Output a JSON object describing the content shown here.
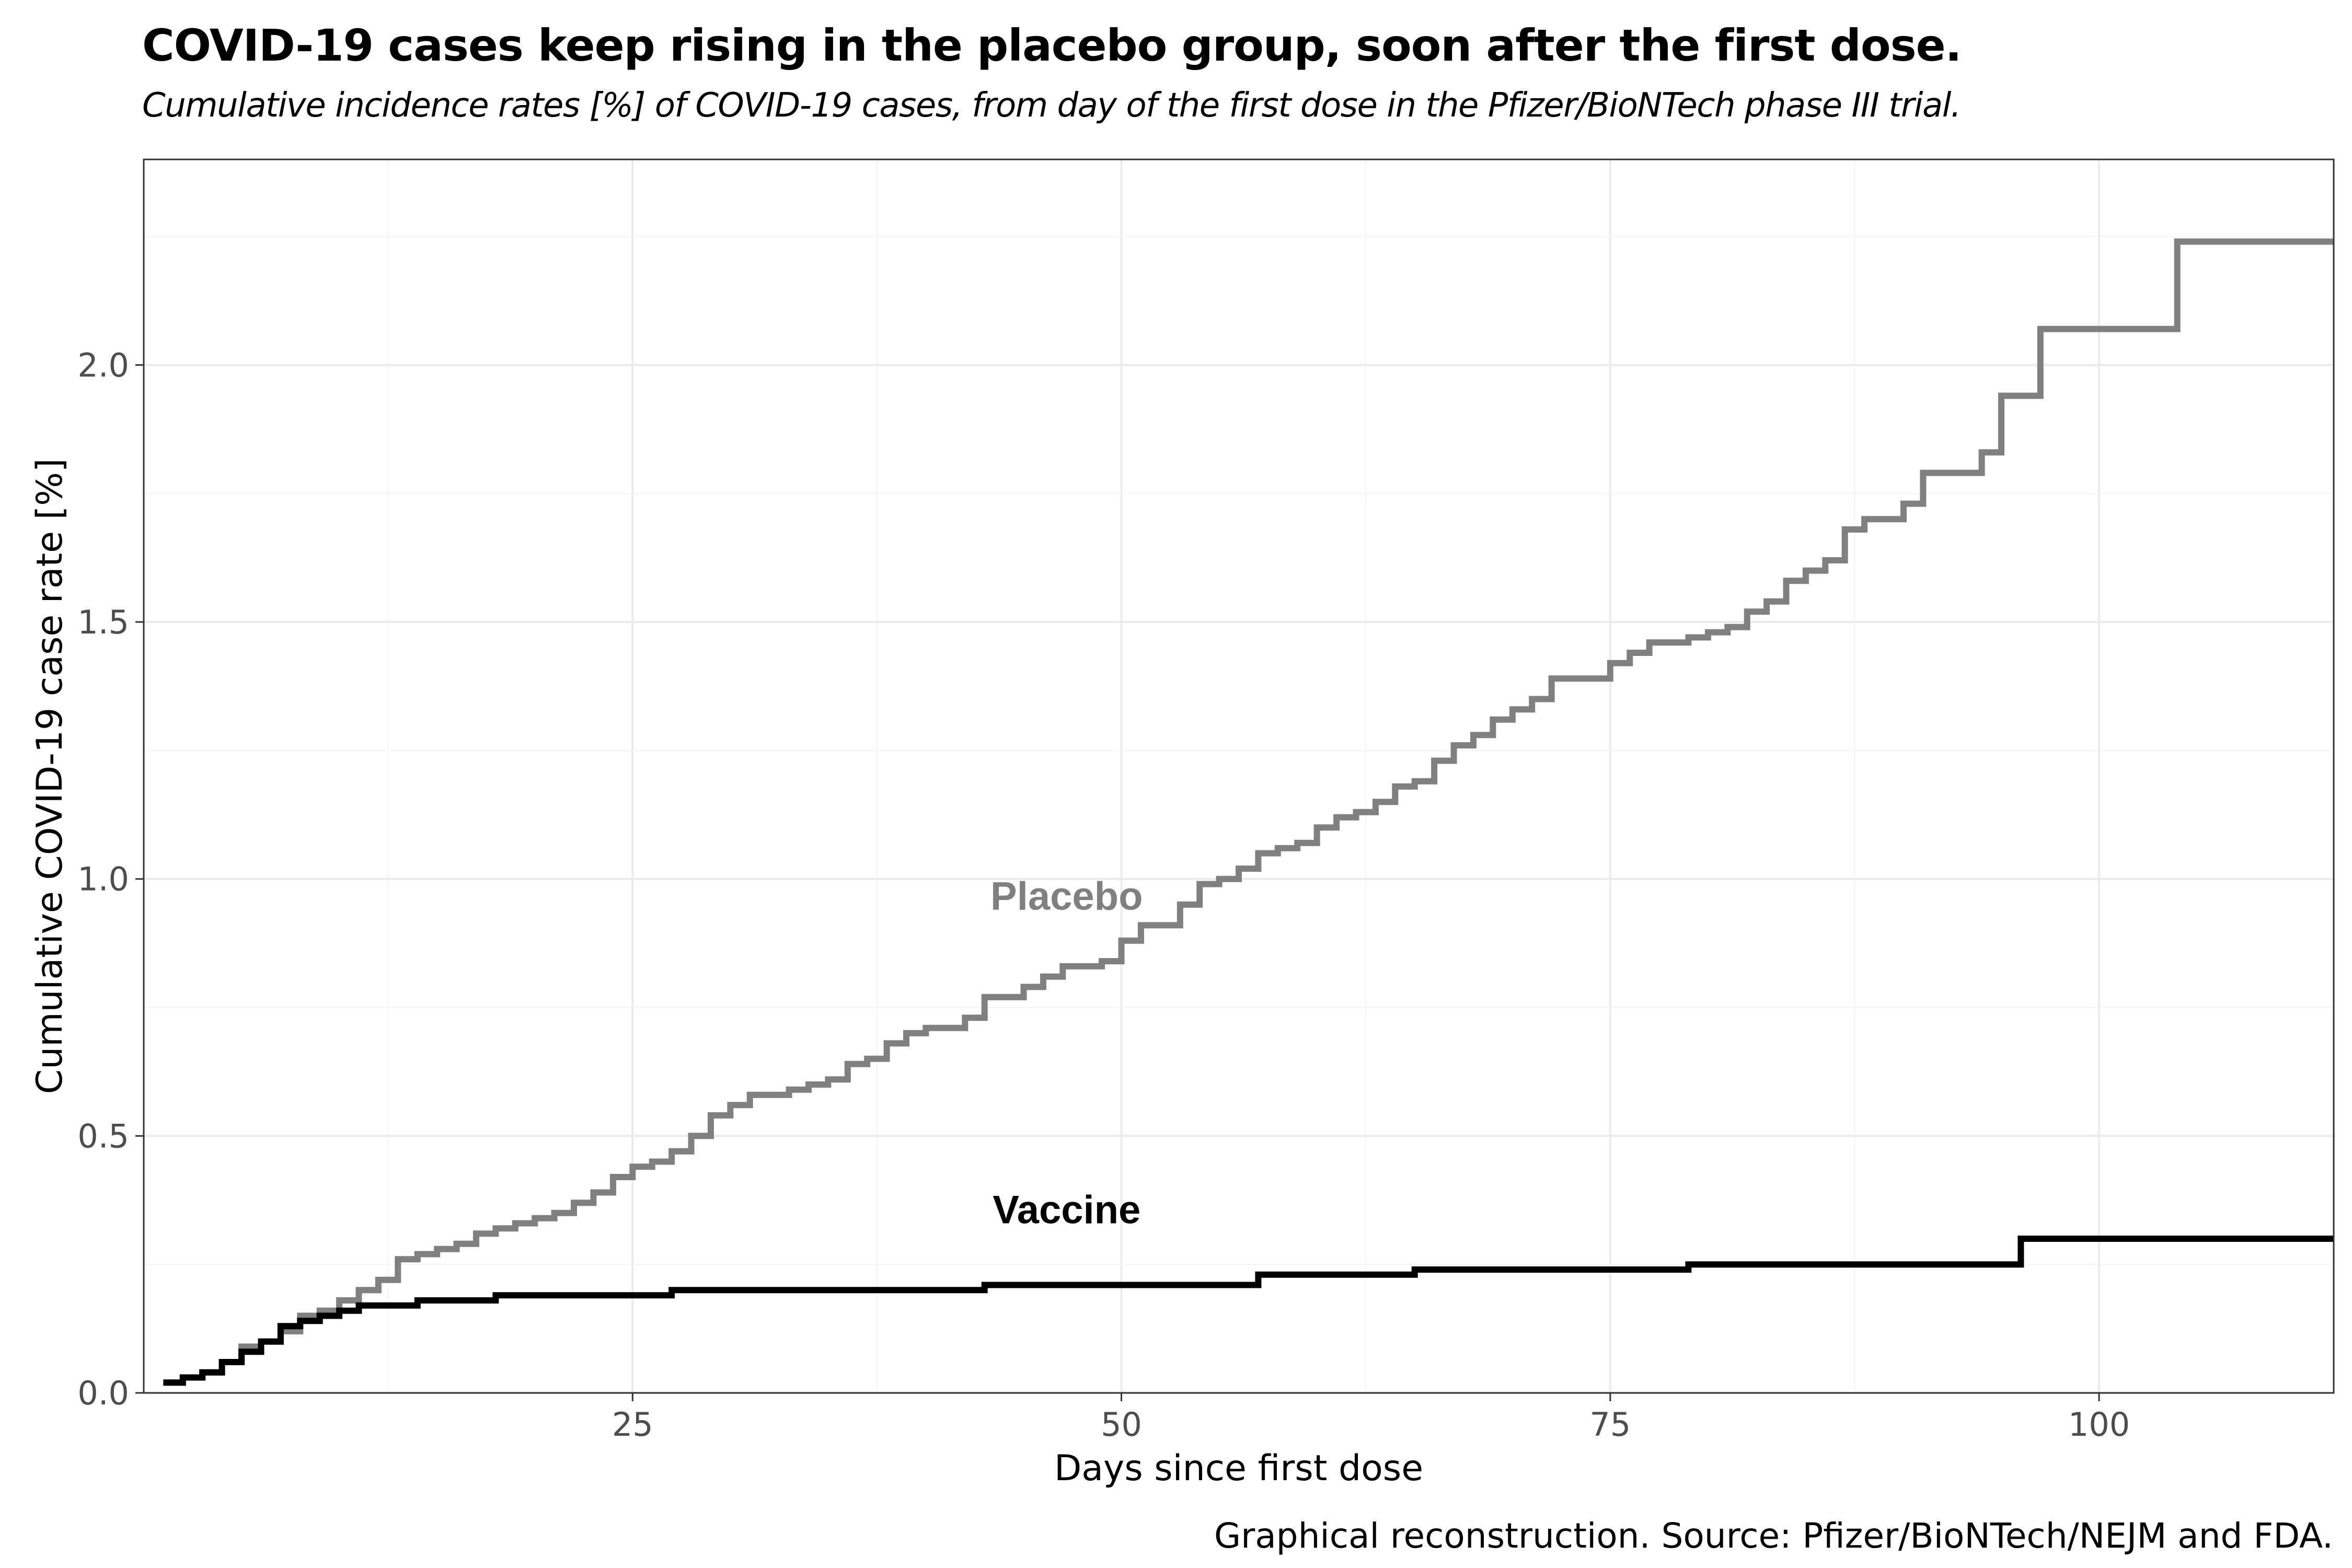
{
  "header": {
    "title": "COVID-19 cases keep rising in the placebo group, soon after the first dose.",
    "subtitle": "Cumulative incidence rates [%] of COVID-19 cases, from day of the first dose in the Pfizer/BioNTech phase III trial."
  },
  "caption": "Graphical reconstruction. Source: Pfizer/BioNTech/NEJM and FDA.",
  "chart_data": {
    "type": "line",
    "step": true,
    "title": "COVID-19 cases keep rising in the placebo group, soon after the first dose.",
    "subtitle": "Cumulative incidence rates [%] of COVID-19 cases, from day of the first dose in the Pfizer/BioNTech phase III trial.",
    "xlabel": "Days since first dose",
    "ylabel": "Cumulative COVID-19 case rate [%]",
    "xlim": [
      0,
      112
    ],
    "ylim": [
      0,
      2.4
    ],
    "x_ticks": [
      25,
      50,
      75,
      100
    ],
    "x_tick_labels": [
      "25",
      "50",
      "75",
      "100"
    ],
    "y_ticks": [
      0,
      0.5,
      1.0,
      1.5,
      2.0
    ],
    "y_tick_labels": [
      "0.0",
      "0.5",
      "1.0",
      "1.5",
      "2.0"
    ],
    "grid": true,
    "legend": "none (direct labels)",
    "series": [
      {
        "name": "Placebo",
        "color": "#808080",
        "label_at": [
          47.2,
          0.94
        ],
        "x": [
          1,
          2,
          3,
          4,
          5,
          6,
          7,
          8,
          9,
          10,
          11,
          12,
          13,
          14,
          15,
          16,
          17,
          18,
          19,
          20,
          21,
          22,
          23,
          24,
          25,
          26,
          27,
          28,
          29,
          30,
          31,
          32,
          33,
          34,
          35,
          36,
          37,
          38,
          39,
          40,
          41,
          42,
          43,
          44,
          45,
          46,
          47,
          48,
          49,
          50,
          51,
          52,
          53,
          54,
          55,
          56,
          57,
          58,
          59,
          60,
          61,
          62,
          63,
          64,
          65,
          66,
          67,
          68,
          69,
          70,
          71,
          72,
          73,
          74,
          75,
          76,
          77,
          78,
          79,
          80,
          81,
          82,
          83,
          84,
          85,
          86,
          87,
          88,
          89,
          90,
          91,
          92,
          93,
          94,
          95,
          96,
          97,
          98,
          104,
          112
        ],
        "y": [
          0.02,
          0.03,
          0.04,
          0.06,
          0.09,
          0.1,
          0.12,
          0.15,
          0.16,
          0.18,
          0.2,
          0.22,
          0.26,
          0.27,
          0.28,
          0.29,
          0.31,
          0.32,
          0.33,
          0.34,
          0.35,
          0.37,
          0.39,
          0.42,
          0.44,
          0.45,
          0.47,
          0.5,
          0.54,
          0.56,
          0.58,
          0.58,
          0.59,
          0.6,
          0.61,
          0.64,
          0.65,
          0.68,
          0.7,
          0.71,
          0.71,
          0.73,
          0.77,
          0.77,
          0.79,
          0.81,
          0.83,
          0.83,
          0.84,
          0.88,
          0.91,
          0.91,
          0.95,
          0.99,
          1.0,
          1.02,
          1.05,
          1.06,
          1.07,
          1.1,
          1.12,
          1.13,
          1.15,
          1.18,
          1.19,
          1.23,
          1.26,
          1.28,
          1.31,
          1.33,
          1.35,
          1.39,
          1.39,
          1.39,
          1.42,
          1.44,
          1.46,
          1.46,
          1.47,
          1.48,
          1.49,
          1.52,
          1.54,
          1.58,
          1.6,
          1.62,
          1.68,
          1.7,
          1.7,
          1.73,
          1.79,
          1.79,
          1.79,
          1.83,
          1.94,
          1.94,
          2.07,
          2.07,
          2.24,
          2.24
        ]
      },
      {
        "name": "Vaccine",
        "color": "#000000",
        "label_at": [
          47.2,
          0.33
        ],
        "x": [
          1,
          2,
          3,
          4,
          5,
          6,
          7,
          8,
          9,
          10,
          11,
          12,
          14,
          17,
          18,
          19,
          27,
          35,
          43,
          54,
          57,
          61,
          65,
          79,
          96,
          112
        ],
        "y": [
          0.02,
          0.03,
          0.04,
          0.06,
          0.08,
          0.1,
          0.13,
          0.14,
          0.15,
          0.16,
          0.17,
          0.17,
          0.18,
          0.18,
          0.19,
          0.19,
          0.2,
          0.2,
          0.21,
          0.21,
          0.23,
          0.23,
          0.24,
          0.25,
          0.3,
          0.3
        ]
      }
    ]
  }
}
